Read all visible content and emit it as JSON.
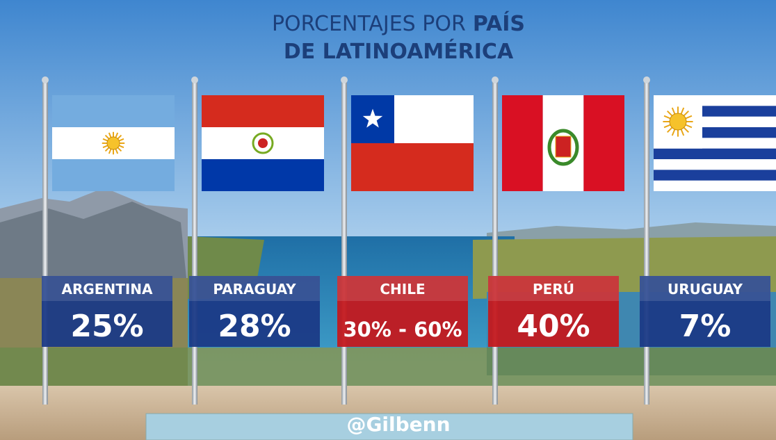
{
  "header": {
    "title_part1": "PORCENTAJES POR",
    "title_bold": "PAÍS",
    "title_line2": "DE LATINOAMÉRICA"
  },
  "cards": [
    {
      "country": "ARGENTINA",
      "percentage": "25%",
      "color": "#1b3a86"
    },
    {
      "country": "PARAGUAY",
      "percentage": "28%",
      "color": "#1b3a86"
    },
    {
      "country": "CHILE",
      "percentage": "30% - 60%",
      "color": "#c3191f"
    },
    {
      "country": "PERÚ",
      "percentage": "40%",
      "color": "#c3191f"
    },
    {
      "country": "URUGUAY",
      "percentage": "7%",
      "color": "#1b3a86"
    }
  ],
  "footer": {
    "handle": "@Gilbenn"
  }
}
